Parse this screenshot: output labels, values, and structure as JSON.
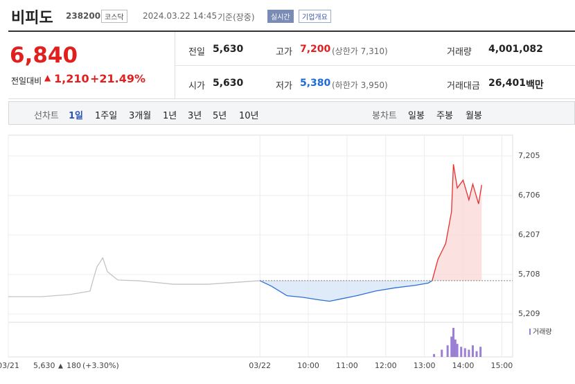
{
  "header": {
    "name": "비피도",
    "code": "238200",
    "market": "코스닥",
    "datetime": "2024.03.22 14:45",
    "basis": "기준(장중)",
    "realtime": "실시간",
    "company_button": "기업개요"
  },
  "price": {
    "current": "6,840",
    "change_label": "전일대비",
    "change": "1,210",
    "change_pct": "+21.49%"
  },
  "stats": {
    "prev_label": "전일",
    "prev": "5,630",
    "high_label": "고가",
    "high": "7,200",
    "upper_limit": "(상한가 7,310)",
    "volume_label": "거래량",
    "volume": "4,001,082",
    "open_label": "시가",
    "open": "5,630",
    "low_label": "저가",
    "low": "5,380",
    "lower_limit": "(하한가 3,950)",
    "amount_label": "거래대금",
    "amount": "26,401",
    "amount_unit": "백만"
  },
  "tabs": {
    "line_label": "선차트",
    "line": [
      "1일",
      "1주일",
      "3개월",
      "1년",
      "3년",
      "5년",
      "10년"
    ],
    "candle_label": "봉차트",
    "candle": [
      "일봉",
      "주봉",
      "월봉"
    ]
  },
  "chart": {
    "type": "line",
    "xlim": [
      0,
      13.03
    ],
    "ylim": [
      5104,
      7468
    ],
    "xticks": [
      {
        "value": 0,
        "label": "03/21"
      },
      {
        "value": 6.5,
        "label": "03/22"
      },
      {
        "value": 7.75,
        "label": "10:00"
      },
      {
        "value": 8.75,
        "label": "11:00"
      },
      {
        "value": 9.75,
        "label": "12:00"
      },
      {
        "value": 10.75,
        "label": "13:00"
      },
      {
        "value": 11.75,
        "label": "14:00"
      },
      {
        "value": 12.75,
        "label": "15:00"
      }
    ],
    "yticks": [
      {
        "value": 5209,
        "label": "5,209"
      },
      {
        "value": 5708,
        "label": "5,708"
      },
      {
        "value": 6207,
        "label": "6,207"
      },
      {
        "value": 6706,
        "label": "6,706"
      },
      {
        "value": 7205,
        "label": "7,205"
      }
    ],
    "baseline": 5630,
    "series": [
      {
        "color": "#c4c4c4",
        "x": [
          0,
          0.86,
          1.58,
          2.11,
          2.2,
          2.29,
          2.44,
          2.56,
          2.83,
          3.37,
          4.26,
          5.16,
          6.5
        ],
        "values": [
          5428,
          5428,
          5454,
          5498,
          5655,
          5804,
          5918,
          5743,
          5638,
          5629,
          5585,
          5585,
          5630
        ]
      },
      {
        "color": "#2d6fd6",
        "fill": "#d7e6f8",
        "x": [
          6.5,
          6.8,
          7.2,
          7.6,
          8.0,
          8.3,
          8.6,
          9.0,
          9.5,
          10.0,
          10.5,
          10.85,
          10.95
        ],
        "values": [
          5630,
          5560,
          5440,
          5420,
          5390,
          5370,
          5400,
          5440,
          5500,
          5540,
          5570,
          5600,
          5630
        ]
      },
      {
        "color": "#e82e2e",
        "fill": "#fbdada",
        "x": [
          10.95,
          11.1,
          11.3,
          11.45,
          11.5,
          11.6,
          11.75,
          11.9,
          12.0,
          12.15,
          12.23
        ],
        "values": [
          5630,
          5900,
          6100,
          6500,
          7100,
          6800,
          6900,
          6650,
          6850,
          6600,
          6840
        ]
      }
    ],
    "volume": {
      "label": "거래량",
      "color": "#9b7fd4",
      "vlim": [
        0,
        100
      ],
      "x": [
        11.0,
        11.2,
        11.35,
        11.45,
        11.5,
        11.55,
        11.6,
        11.7,
        11.8,
        11.9,
        12.0,
        12.1,
        12.2
      ],
      "values": [
        10,
        25,
        40,
        70,
        100,
        60,
        45,
        35,
        30,
        25,
        40,
        20,
        35
      ]
    },
    "prev_close": "5,630",
    "prev_change": "180",
    "prev_change_pct": "(+3.30%)"
  }
}
